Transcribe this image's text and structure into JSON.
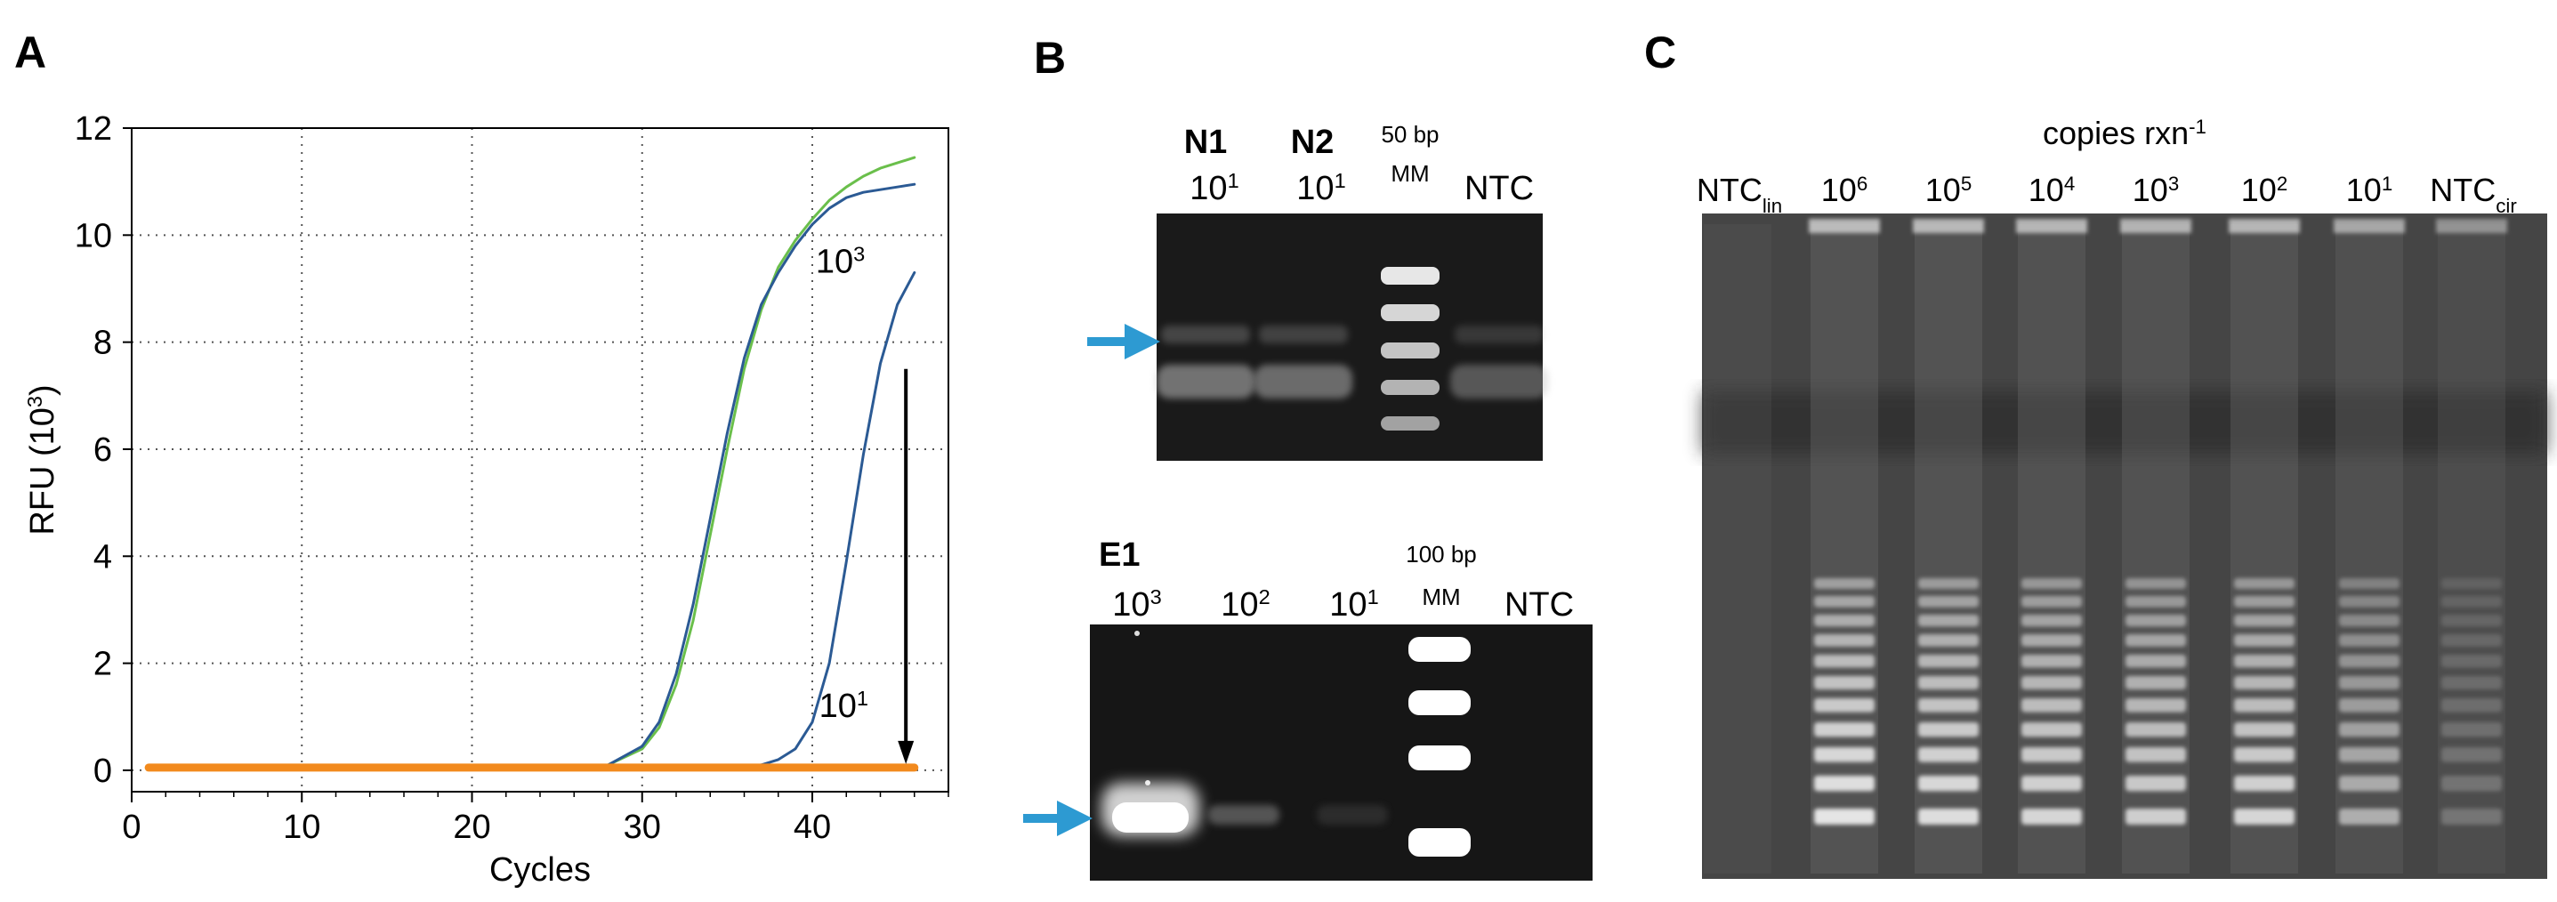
{
  "panels": {
    "a": {
      "letter": "A"
    },
    "b": {
      "letter": "B"
    },
    "c": {
      "letter": "C"
    }
  },
  "chart_data": {
    "type": "line",
    "xlabel": "Cycles",
    "ylabel": "RFU (10",
    "ylabel_sup": "3",
    "ylabel_close": ")",
    "xlim": [
      0,
      48
    ],
    "ylim": [
      -0.4,
      12
    ],
    "xticks": [
      0,
      10,
      20,
      30,
      40
    ],
    "yticks": [
      0,
      2,
      4,
      6,
      8,
      10,
      12
    ],
    "grid": true,
    "series": [
      {
        "color": "#6abf4b",
        "x": [
          1,
          10,
          20,
          26,
          28,
          30,
          31,
          32,
          33,
          34,
          35,
          36,
          37,
          38,
          39,
          40,
          41,
          42,
          43,
          44,
          45,
          46
        ],
        "y": [
          0.02,
          0.02,
          0.02,
          0.03,
          0.1,
          0.4,
          0.8,
          1.6,
          2.8,
          4.4,
          6.0,
          7.5,
          8.6,
          9.4,
          9.9,
          10.3,
          10.65,
          10.9,
          11.1,
          11.25,
          11.35,
          11.45
        ]
      },
      {
        "color": "#2b5a94",
        "x": [
          1,
          10,
          20,
          26,
          28,
          30,
          31,
          32,
          33,
          34,
          35,
          36,
          37,
          38,
          39,
          40,
          41,
          42,
          43,
          44,
          45,
          46
        ],
        "y": [
          0.02,
          0.02,
          0.02,
          0.03,
          0.1,
          0.45,
          0.9,
          1.8,
          3.1,
          4.7,
          6.3,
          7.7,
          8.7,
          9.3,
          9.8,
          10.2,
          10.5,
          10.7,
          10.8,
          10.85,
          10.9,
          10.95
        ]
      },
      {
        "color": "#2b5a94",
        "x": [
          1,
          10,
          20,
          30,
          35,
          37,
          38,
          39,
          40,
          41,
          42,
          43,
          44,
          45,
          46
        ],
        "y": [
          0.02,
          0.02,
          0.02,
          0.02,
          0.03,
          0.1,
          0.2,
          0.4,
          0.9,
          2.0,
          3.9,
          5.9,
          7.6,
          8.7,
          9.3
        ]
      },
      {
        "color": "#f28a1e",
        "x": [
          1,
          46
        ],
        "y": [
          0.05,
          0.05
        ]
      }
    ],
    "annotations": [
      {
        "base": "10",
        "sup": "3",
        "x": 40.2,
        "y": 9.3
      },
      {
        "base": "10",
        "sup": "1",
        "x": 40.4,
        "y": 1.0
      }
    ],
    "arrow": {
      "x": 45.5,
      "y_from": 7.5,
      "y_to": 0.05
    }
  },
  "gel_n": {
    "lanes": [
      {
        "top": "N1",
        "bottom": "10",
        "sup": "1"
      },
      {
        "top": "N2",
        "bottom": "10",
        "sup": "1"
      },
      {
        "top": "50 bp",
        "bottom": "MM",
        "sup": ""
      },
      {
        "top": "",
        "bottom": "NTC",
        "sup": ""
      }
    ]
  },
  "gel_e": {
    "lanes": [
      {
        "top": "E1",
        "bottom": "10",
        "sup": "3"
      },
      {
        "top": "",
        "bottom": "10",
        "sup": "2"
      },
      {
        "top": "",
        "bottom": "10",
        "sup": "1"
      },
      {
        "top": "100 bp",
        "bottom": "MM",
        "sup": ""
      },
      {
        "top": "",
        "bottom": "NTC",
        "sup": ""
      }
    ]
  },
  "gel_c": {
    "title_base": "copies rxn",
    "title_sup": "-1",
    "lanes": [
      {
        "base": "NTC",
        "sub": "lin",
        "sup": "",
        "ladder": 0
      },
      {
        "base": "10",
        "sub": "",
        "sup": "6",
        "ladder": 0.95
      },
      {
        "base": "10",
        "sub": "",
        "sup": "5",
        "ladder": 0.9
      },
      {
        "base": "10",
        "sub": "",
        "sup": "4",
        "ladder": 0.85
      },
      {
        "base": "10",
        "sub": "",
        "sup": "3",
        "ladder": 0.8
      },
      {
        "base": "10",
        "sub": "",
        "sup": "2",
        "ladder": 0.85
      },
      {
        "base": "10",
        "sub": "",
        "sup": "1",
        "ladder": 0.6
      },
      {
        "base": "NTC",
        "sub": "cir",
        "sup": "",
        "ladder": 0.25
      }
    ]
  }
}
